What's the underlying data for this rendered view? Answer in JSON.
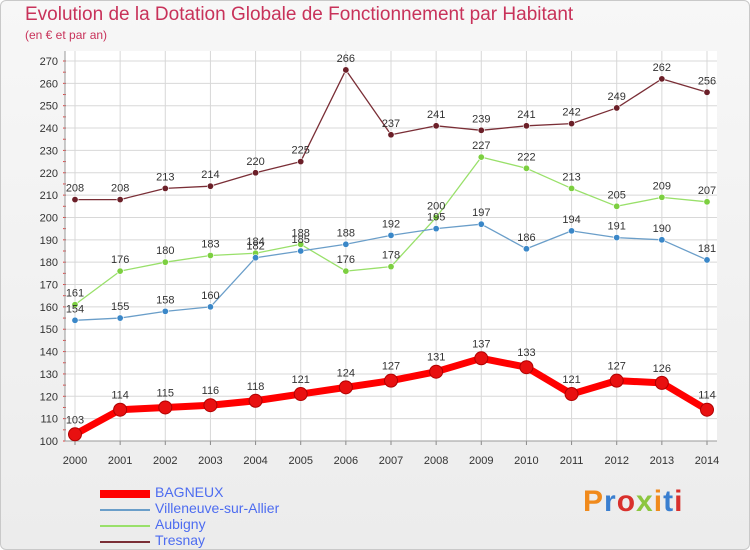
{
  "header": {
    "title": "Evolution de la Dotation Globale de Fonctionnement par Habitant",
    "subtitle": "(en € et par an)"
  },
  "logo": {
    "text": "Proxiti",
    "colors": [
      "#f08a1c",
      "#3a7fd0",
      "#d9302c",
      "#8cc63f"
    ]
  },
  "chart_data": {
    "type": "line",
    "x": [
      "2000",
      "2001",
      "2002",
      "2003",
      "2004",
      "2005",
      "2006",
      "2007",
      "2008",
      "2009",
      "2010",
      "2011",
      "2012",
      "2013",
      "2014"
    ],
    "ylim": [
      100,
      270
    ],
    "yticks": [
      100,
      110,
      120,
      130,
      140,
      150,
      160,
      170,
      180,
      190,
      200,
      210,
      220,
      230,
      240,
      250,
      260,
      270
    ],
    "grid": true,
    "legend_position": "bottom-left",
    "series": [
      {
        "name": "BAGNEUX",
        "color": "#ff0000",
        "marker": "#e81010",
        "width": 7,
        "values": [
          103,
          114,
          115,
          116,
          118,
          121,
          124,
          127,
          131,
          137,
          133,
          121,
          127,
          126,
          114
        ]
      },
      {
        "name": "Villeneuve-sur-Allier",
        "color": "#6a9ec9",
        "marker": "#3a87c8",
        "width": 1.3,
        "values": [
          154,
          155,
          158,
          160,
          182,
          185,
          188,
          192,
          195,
          197,
          186,
          194,
          191,
          190,
          181
        ]
      },
      {
        "name": "Aubigny",
        "color": "#99e06a",
        "marker": "#7ccf40",
        "width": 1.3,
        "values": [
          161,
          176,
          180,
          183,
          184,
          188,
          176,
          178,
          200,
          227,
          222,
          213,
          205,
          209,
          207
        ]
      },
      {
        "name": "Tresnay",
        "color": "#7a2e36",
        "marker": "#6b1f28",
        "width": 1.3,
        "values": [
          208,
          208,
          213,
          214,
          220,
          225,
          266,
          237,
          241,
          239,
          241,
          242,
          249,
          262,
          256
        ]
      }
    ]
  }
}
